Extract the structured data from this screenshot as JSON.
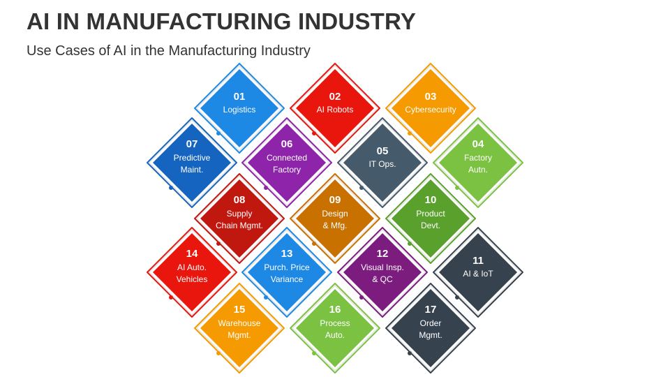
{
  "header": {
    "title": "AI IN MANUFACTURING INDUSTRY",
    "subtitle": "Use Cases of AI in the Manufacturing Industry"
  },
  "nodes": [
    {
      "number": "01",
      "lines": [
        "Logistics"
      ]
    },
    {
      "number": "02",
      "lines": [
        "AI Robots"
      ]
    },
    {
      "number": "03",
      "lines": [
        "Cybersecurity"
      ]
    },
    {
      "number": "04",
      "lines": [
        "Factory",
        "Autn."
      ]
    },
    {
      "number": "05",
      "lines": [
        "IT Ops."
      ]
    },
    {
      "number": "06",
      "lines": [
        "Connected",
        "Factory"
      ]
    },
    {
      "number": "07",
      "lines": [
        "Predictive",
        "Maint."
      ]
    },
    {
      "number": "08",
      "lines": [
        "Supply",
        "Chain Mgmt."
      ]
    },
    {
      "number": "09",
      "lines": [
        "Design",
        "& Mfg."
      ]
    },
    {
      "number": "10",
      "lines": [
        "Product",
        "Devt."
      ]
    },
    {
      "number": "11",
      "lines": [
        "AI & IoT"
      ]
    },
    {
      "number": "12",
      "lines": [
        "Visual Insp.",
        "& QC"
      ]
    },
    {
      "number": "13",
      "lines": [
        "Purch. Price",
        "Variance"
      ]
    },
    {
      "number": "14",
      "lines": [
        "AI Auto.",
        "Vehicles"
      ]
    },
    {
      "number": "15",
      "lines": [
        "Warehouse",
        "Mgmt."
      ]
    },
    {
      "number": "16",
      "lines": [
        "Process",
        "Auto."
      ]
    },
    {
      "number": "17",
      "lines": [
        "Order",
        "Mgmt."
      ]
    }
  ]
}
